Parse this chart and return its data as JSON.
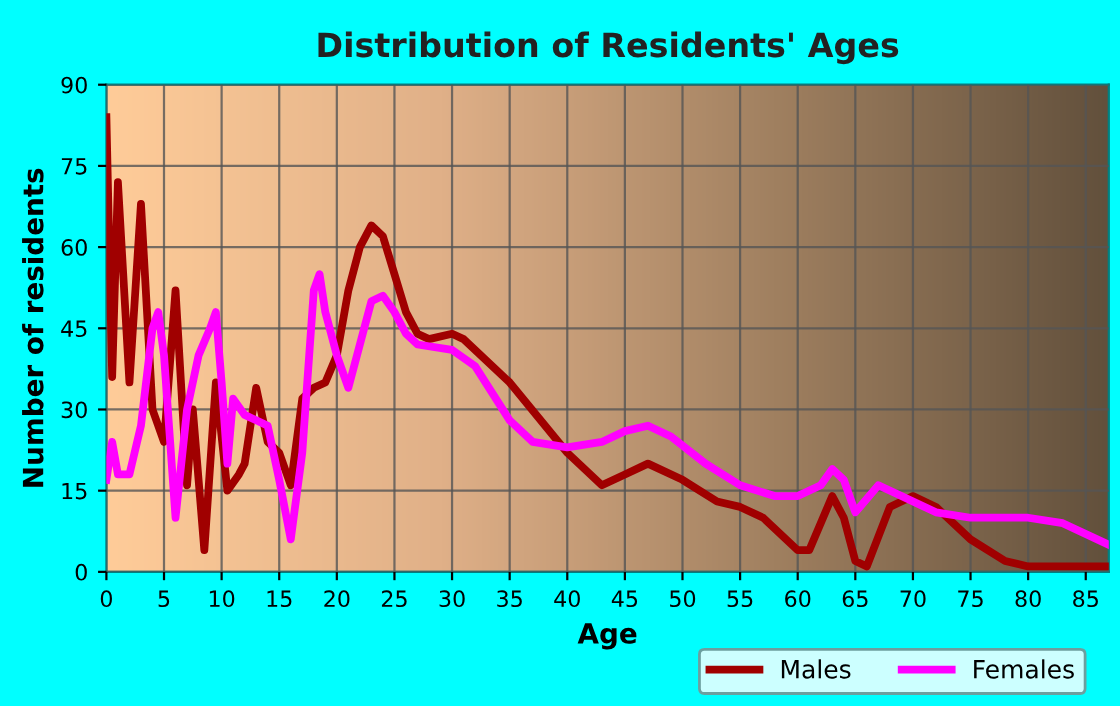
{
  "chart_data": {
    "type": "line",
    "title": "Distribution of Residents' Ages",
    "xlabel": "Age",
    "ylabel": "Number of residents",
    "xlim": [
      0,
      87
    ],
    "xticks": [
      0,
      5,
      10,
      15,
      20,
      25,
      30,
      35,
      40,
      45,
      50,
      55,
      60,
      65,
      70,
      75,
      80,
      85
    ],
    "ylim": [
      0,
      90
    ],
    "yticks": [
      0,
      15,
      30,
      45,
      60,
      75,
      90
    ],
    "grid": true,
    "legend": "bottom right",
    "marker": "none",
    "line_style": "solid",
    "series": [
      {
        "name": "Males",
        "color": "#a00000",
        "x": [
          0,
          0.5,
          1,
          2,
          3,
          4,
          5,
          6,
          7,
          7.5,
          8.5,
          9.5,
          10.5,
          11.5,
          12,
          13,
          14,
          15,
          16,
          17,
          18,
          19,
          20,
          21,
          22,
          23,
          24,
          25,
          26,
          27,
          28,
          30,
          31,
          35,
          40,
          43,
          45,
          47,
          50,
          53,
          55,
          57,
          60,
          61,
          63,
          64,
          65,
          66,
          68,
          70,
          72,
          75,
          78,
          80,
          87
        ],
        "values": [
          84,
          36,
          72,
          35,
          68,
          30,
          24,
          52,
          16,
          30,
          4,
          35,
          15,
          18,
          20,
          34,
          24,
          22,
          16,
          32,
          34,
          35,
          40,
          52,
          60,
          64,
          62,
          55,
          48,
          44,
          43,
          44,
          43,
          35,
          22,
          16,
          18,
          20,
          17,
          13,
          12,
          10,
          4,
          4,
          14,
          10,
          2,
          1,
          12,
          14,
          12,
          6,
          2,
          1,
          1
        ]
      },
      {
        "name": "Females",
        "color": "#ff00ff",
        "x": [
          0,
          0.5,
          1,
          2,
          3,
          4,
          4.5,
          5,
          6,
          7,
          8,
          9,
          9.5,
          10,
          10.5,
          11,
          12,
          13,
          14,
          15,
          16,
          17,
          18,
          18.5,
          19,
          20,
          21,
          22,
          23,
          24,
          25,
          26,
          27,
          30,
          32,
          35,
          37,
          40,
          43,
          45,
          47,
          49,
          52,
          55,
          58,
          60,
          62,
          63,
          64,
          65,
          67,
          69,
          72,
          75,
          80,
          83,
          87
        ],
        "values": [
          17,
          24,
          18,
          18,
          27,
          45,
          48,
          40,
          10,
          30,
          40,
          45,
          48,
          35,
          20,
          32,
          29,
          28,
          27,
          17,
          6,
          22,
          52,
          55,
          48,
          40,
          34,
          42,
          50,
          51,
          48,
          44,
          42,
          41,
          38,
          28,
          24,
          23,
          24,
          26,
          27,
          25,
          20,
          16,
          14,
          14,
          16,
          19,
          17,
          11,
          16,
          14,
          11,
          10,
          10,
          9,
          5
        ]
      }
    ]
  }
}
